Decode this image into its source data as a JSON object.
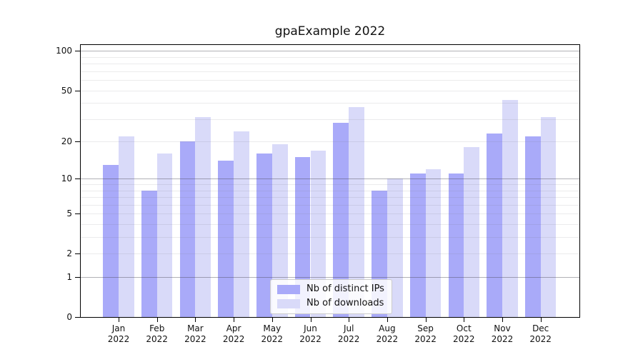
{
  "title": "gpaExample 2022",
  "chart_data": {
    "type": "bar",
    "title": "gpaExample 2022",
    "categories": [
      "Jan 2022",
      "Feb 2022",
      "Mar 2022",
      "Apr 2022",
      "May 2022",
      "Jun 2022",
      "Jul 2022",
      "Aug 2022",
      "Sep 2022",
      "Oct 2022",
      "Nov 2022",
      "Dec 2022"
    ],
    "series": [
      {
        "name": "Nb of distinct IPs",
        "color": "#a9aaf9",
        "values": [
          13,
          8,
          20,
          14,
          16,
          15,
          28,
          8,
          11,
          11,
          23,
          22
        ]
      },
      {
        "name": "Nb of downloads",
        "color": "#d9daf9",
        "values": [
          22,
          16,
          31,
          24,
          19,
          17,
          37,
          10,
          12,
          18,
          42,
          31
        ]
      }
    ],
    "xlabel": "",
    "ylabel": "",
    "yscale": "log1p",
    "ylim": [
      0,
      111
    ],
    "yticks": [
      100,
      50,
      20,
      10,
      5,
      2,
      1,
      0
    ],
    "major_gridlines": [
      1,
      10,
      100
    ],
    "minor_gridlines": [
      2,
      3,
      4,
      5,
      6,
      7,
      8,
      9,
      20,
      30,
      40,
      50,
      60,
      70,
      80,
      90
    ],
    "grid": true,
    "legend_position": "lower center",
    "spine_color": "#000000",
    "major_grid_color": "#b0b0b4",
    "minor_grid_color": "#e9e9ec"
  }
}
